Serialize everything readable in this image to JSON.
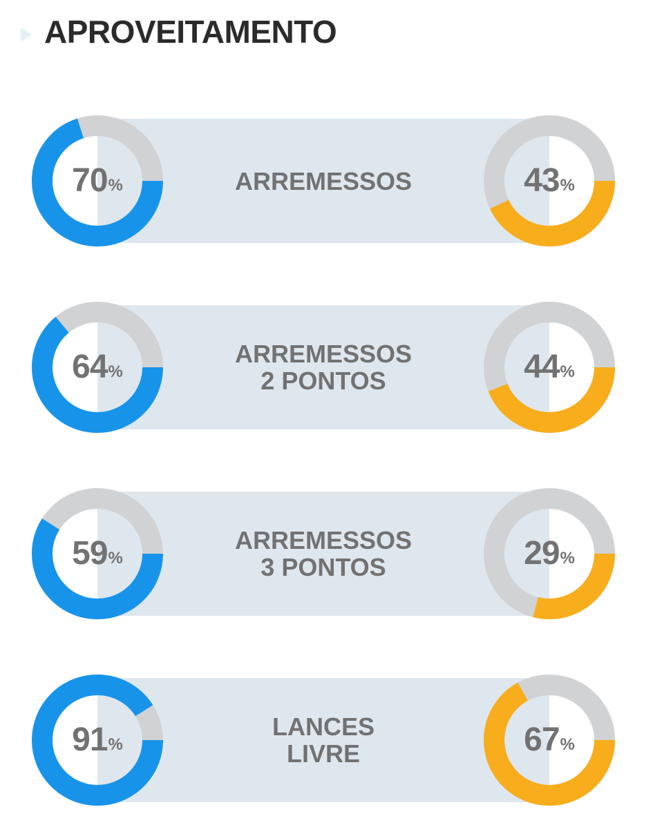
{
  "header": {
    "title": "APROVEITAMENTO"
  },
  "colors": {
    "left_accent": "#1794ea",
    "right_accent": "#f7ad1c",
    "ring_track": "#d1d2d4",
    "band": "#dfe7ee",
    "text": "#727272",
    "title": "#2b2b2b"
  },
  "stats": [
    {
      "label_lines": [
        "ARREMESSOS"
      ],
      "left_value": 70,
      "right_value": 43,
      "unit": "%"
    },
    {
      "label_lines": [
        "ARREMESSOS",
        "2 PONTOS"
      ],
      "left_value": 64,
      "right_value": 44,
      "unit": "%"
    },
    {
      "label_lines": [
        "ARREMESSOS",
        "3 PONTOS"
      ],
      "left_value": 59,
      "right_value": 29,
      "unit": "%"
    },
    {
      "label_lines": [
        "LANCES",
        "LIVRE"
      ],
      "left_value": 91,
      "right_value": 67,
      "unit": "%"
    }
  ]
}
